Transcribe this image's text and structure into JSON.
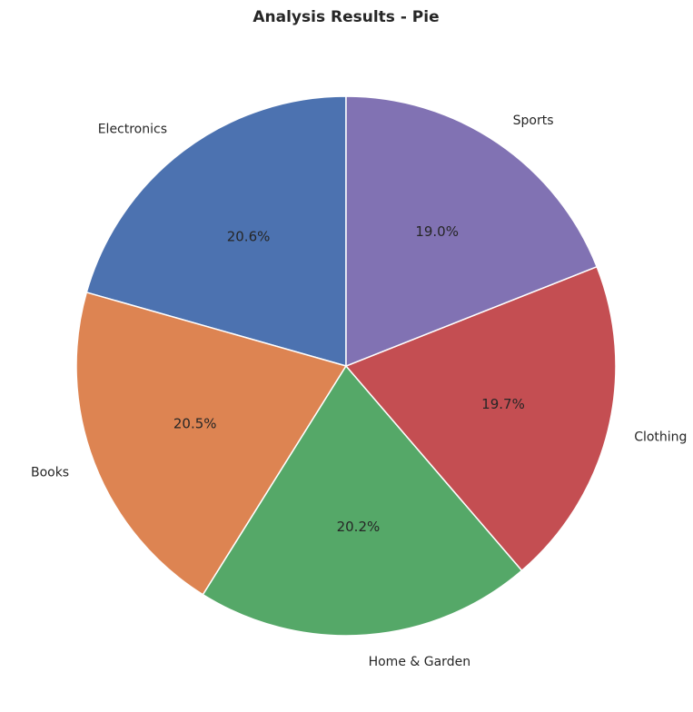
{
  "chart_data": {
    "type": "pie",
    "title": "Analysis Results - Pie",
    "categories": [
      "Electronics",
      "Books",
      "Home & Garden",
      "Clothing",
      "Sports"
    ],
    "values": [
      20.6,
      20.5,
      20.2,
      19.7,
      19.0
    ],
    "value_labels": [
      "20.6%",
      "20.5%",
      "20.2%",
      "19.7%",
      "19.0%"
    ],
    "colors": [
      "#4c72b0",
      "#dd8452",
      "#55a868",
      "#c44e52",
      "#8172b3"
    ],
    "start_angle_deg": 90,
    "direction": "counterclockwise",
    "legend": "none"
  }
}
